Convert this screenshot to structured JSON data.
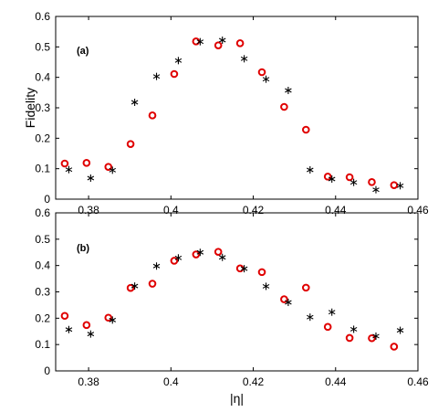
{
  "chart_data": [
    {
      "type": "scatter",
      "title": "",
      "panel_label": "(a)",
      "xlabel": "",
      "ylabel": "Fidelity",
      "xlim": [
        0.372,
        0.46
      ],
      "ylim": [
        0,
        0.6
      ],
      "xticks": [
        0.38,
        0.4,
        0.42,
        0.44,
        0.46
      ],
      "yticks": [
        0,
        0.1,
        0.2,
        0.3,
        0.4,
        0.5,
        0.6
      ],
      "xtick_labels": [
        "0.38",
        "0.4",
        "0.42",
        "0.44",
        "0.46"
      ],
      "ytick_labels": [
        "0",
        "0.1",
        "0.2",
        "0.3",
        "0.4",
        "0.5",
        "0.6"
      ],
      "grid": false,
      "series": [
        {
          "marker": "circle",
          "color": "#e00000",
          "x": [
            0.3742,
            0.3795,
            0.3848,
            0.3902,
            0.3955,
            0.4008,
            0.4061,
            0.4115,
            0.4168,
            0.4221,
            0.4275,
            0.4328,
            0.4381,
            0.4434,
            0.4488,
            0.4542
          ],
          "y": [
            0.117,
            0.119,
            0.106,
            0.181,
            0.275,
            0.411,
            0.518,
            0.505,
            0.512,
            0.417,
            0.303,
            0.228,
            0.074,
            0.072,
            0.056,
            0.046
          ]
        },
        {
          "marker": "asterisk",
          "color": "#000000",
          "x": [
            0.3752,
            0.3805,
            0.3858,
            0.3912,
            0.3965,
            0.4018,
            0.4071,
            0.4125,
            0.4178,
            0.4231,
            0.4285,
            0.4338,
            0.4391,
            0.4444,
            0.4498,
            0.4557
          ],
          "y": [
            0.097,
            0.069,
            0.095,
            0.318,
            0.403,
            0.455,
            0.517,
            0.522,
            0.461,
            0.394,
            0.357,
            0.096,
            0.066,
            0.055,
            0.031,
            0.044
          ]
        }
      ]
    },
    {
      "type": "scatter",
      "title": "",
      "panel_label": "(b)",
      "xlabel": "|η|",
      "ylabel": "",
      "xlim": [
        0.372,
        0.46
      ],
      "ylim": [
        0,
        0.6
      ],
      "xticks": [
        0.38,
        0.4,
        0.42,
        0.44,
        0.46
      ],
      "yticks": [
        0,
        0.1,
        0.2,
        0.3,
        0.4,
        0.5,
        0.6
      ],
      "xtick_labels": [
        "0.38",
        "0.4",
        "0.42",
        "0.44",
        "0.46"
      ],
      "ytick_labels": [
        "0",
        "0.1",
        "0.2",
        "0.3",
        "0.4",
        "0.5",
        "0.6"
      ],
      "grid": false,
      "series": [
        {
          "marker": "circle",
          "color": "#e00000",
          "x": [
            0.3742,
            0.3795,
            0.3848,
            0.3902,
            0.3955,
            0.4008,
            0.4061,
            0.4115,
            0.4168,
            0.4221,
            0.4275,
            0.4328,
            0.4381,
            0.4434,
            0.4488,
            0.4542
          ],
          "y": [
            0.209,
            0.174,
            0.202,
            0.315,
            0.331,
            0.418,
            0.442,
            0.452,
            0.389,
            0.375,
            0.272,
            0.316,
            0.167,
            0.125,
            0.124,
            0.092
          ]
        },
        {
          "marker": "asterisk",
          "color": "#000000",
          "x": [
            0.3752,
            0.3805,
            0.3858,
            0.3912,
            0.3965,
            0.4018,
            0.4071,
            0.4125,
            0.4178,
            0.4231,
            0.4285,
            0.4338,
            0.4391,
            0.4444,
            0.4498,
            0.4557
          ],
          "y": [
            0.157,
            0.14,
            0.193,
            0.322,
            0.398,
            0.429,
            0.45,
            0.431,
            0.388,
            0.321,
            0.26,
            0.204,
            0.223,
            0.158,
            0.132,
            0.154
          ]
        }
      ]
    }
  ]
}
